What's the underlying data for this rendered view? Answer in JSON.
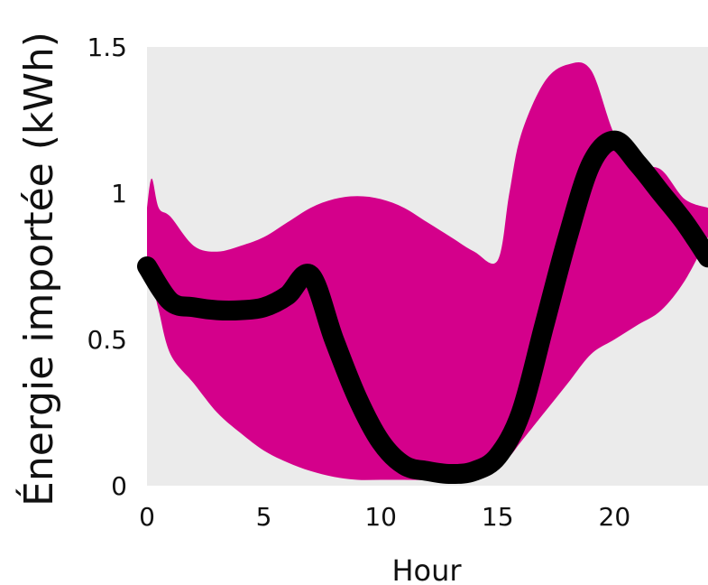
{
  "chart_data": {
    "type": "area",
    "title": "",
    "xlabel": "Hour",
    "ylabel": "Énergie importée (kWh)",
    "xlim": [
      0,
      24
    ],
    "ylim": [
      0,
      1.5
    ],
    "x_ticks": [
      0,
      5,
      10,
      15,
      20
    ],
    "y_ticks": [
      0,
      0.5,
      1,
      1.5
    ],
    "y_tick_labels": [
      "0",
      "0.5",
      "1",
      "1.5"
    ],
    "grid": false,
    "legend": "none",
    "colors": {
      "background": "#ebebeb",
      "area": "#d4008b",
      "line": "#000000"
    },
    "series": [
      {
        "type": "area",
        "x": [
          0,
          0.2,
          0.5,
          1,
          2,
          3,
          4,
          5,
          6,
          7,
          8,
          9,
          10,
          11,
          12,
          13,
          14,
          15,
          15.5,
          16,
          17,
          18,
          19,
          20,
          21,
          22,
          23,
          24
        ],
        "y_top": [
          0.95,
          1.05,
          0.95,
          0.92,
          0.82,
          0.8,
          0.82,
          0.85,
          0.9,
          0.95,
          0.98,
          0.99,
          0.98,
          0.95,
          0.9,
          0.85,
          0.8,
          0.77,
          1.0,
          1.2,
          1.38,
          1.44,
          1.42,
          1.2,
          1.1,
          1.08,
          0.98,
          0.95
        ],
        "y_bottom": [
          0.75,
          0.7,
          0.6,
          0.45,
          0.35,
          0.25,
          0.18,
          0.12,
          0.08,
          0.05,
          0.03,
          0.02,
          0.02,
          0.02,
          0.02,
          0.03,
          0.05,
          0.08,
          0.1,
          0.15,
          0.25,
          0.35,
          0.45,
          0.5,
          0.55,
          0.6,
          0.7,
          0.85
        ]
      },
      {
        "type": "line",
        "x": [
          0,
          1,
          2,
          3,
          4,
          5,
          6,
          7,
          8,
          9,
          10,
          11,
          12,
          13,
          14,
          15,
          16,
          17,
          18,
          19,
          20,
          21,
          22,
          23,
          24
        ],
        "y": [
          0.75,
          0.63,
          0.61,
          0.6,
          0.6,
          0.61,
          0.65,
          0.72,
          0.5,
          0.3,
          0.15,
          0.07,
          0.05,
          0.04,
          0.05,
          0.1,
          0.25,
          0.55,
          0.85,
          1.1,
          1.18,
          1.1,
          1.0,
          0.9,
          0.78
        ]
      }
    ]
  }
}
